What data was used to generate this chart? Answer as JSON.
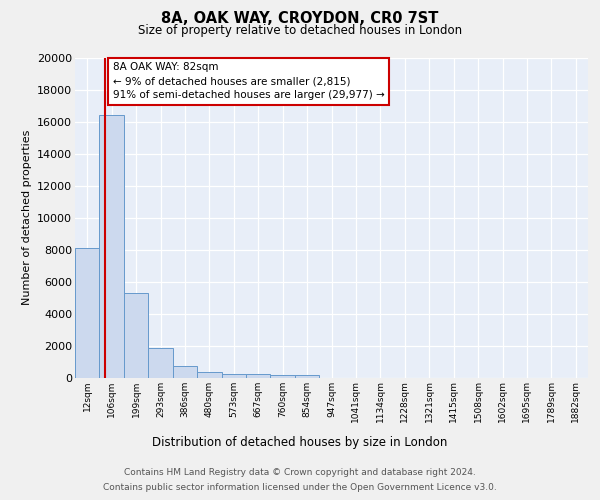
{
  "title1": "8A, OAK WAY, CROYDON, CR0 7ST",
  "title2": "Size of property relative to detached houses in London",
  "xlabel": "Distribution of detached houses by size in London",
  "ylabel": "Number of detached properties",
  "bin_labels": [
    "12sqm",
    "106sqm",
    "199sqm",
    "293sqm",
    "386sqm",
    "480sqm",
    "573sqm",
    "667sqm",
    "760sqm",
    "854sqm",
    "947sqm",
    "1041sqm",
    "1134sqm",
    "1228sqm",
    "1321sqm",
    "1415sqm",
    "1508sqm",
    "1602sqm",
    "1695sqm",
    "1789sqm",
    "1882sqm"
  ],
  "bar_heights": [
    8100,
    16400,
    5300,
    1850,
    700,
    330,
    230,
    200,
    175,
    150,
    0,
    0,
    0,
    0,
    0,
    0,
    0,
    0,
    0,
    0,
    0
  ],
  "bar_color": "#ccd9ee",
  "bar_edge_color": "#6699cc",
  "property_line_color": "#cc0000",
  "property_line_x": 0.72,
  "annotation_line1": "8A OAK WAY: 82sqm",
  "annotation_line2": "← 9% of detached houses are smaller (2,815)",
  "annotation_line3": "91% of semi-detached houses are larger (29,977) →",
  "ylim": [
    0,
    20000
  ],
  "yticks": [
    0,
    2000,
    4000,
    6000,
    8000,
    10000,
    12000,
    14000,
    16000,
    18000,
    20000
  ],
  "footer1": "Contains HM Land Registry data © Crown copyright and database right 2024.",
  "footer2": "Contains public sector information licensed under the Open Government Licence v3.0.",
  "fig_bg_color": "#f0f0f0",
  "plot_bg_color": "#e8eef8"
}
